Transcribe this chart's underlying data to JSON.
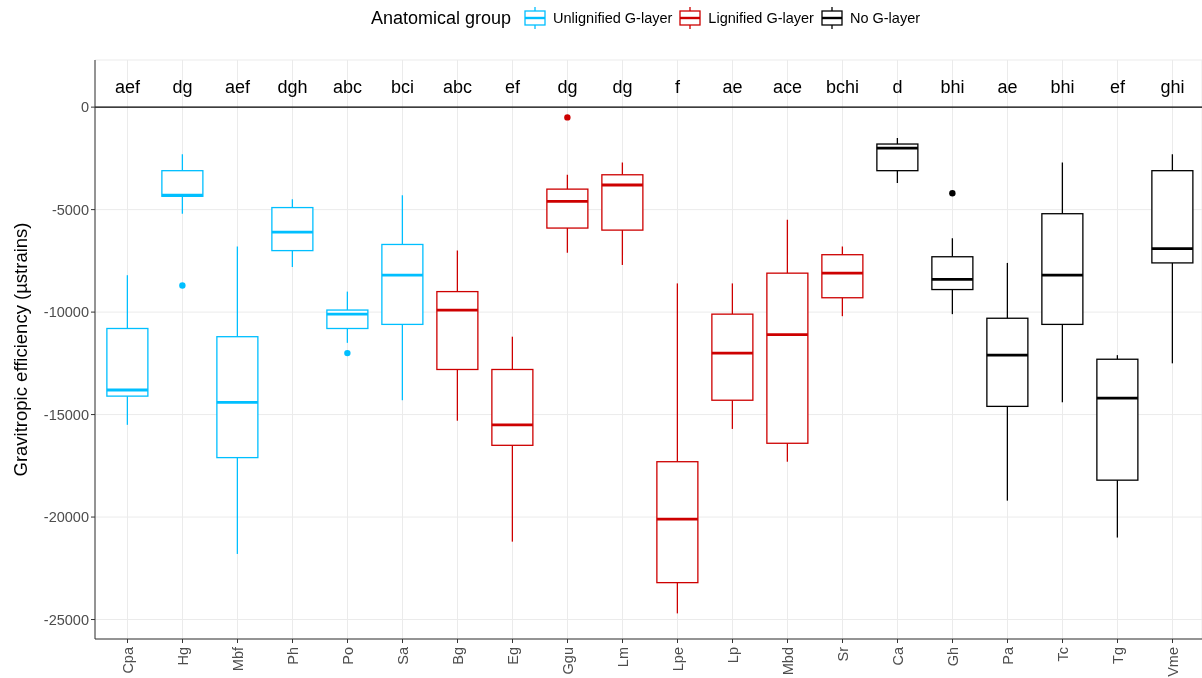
{
  "chart_data": {
    "type": "box",
    "ylabel": "Gravitropic efficiency (µstrains)",
    "legend_title": "Anatomical group",
    "legend": "top",
    "grid": true,
    "categories": [
      "Cpa",
      "Hg",
      "Mbf",
      "Ph",
      "Po",
      "Sa",
      "Bg",
      "Eg",
      "Ggu",
      "Lm",
      "Lpe",
      "Lp",
      "Mbd",
      "Sr",
      "Ca",
      "Gh",
      "Pa",
      "Tc",
      "Tg",
      "Vme"
    ],
    "ylim": [
      -25950,
      2300
    ],
    "yticks": [
      -25000,
      -20000,
      -15000,
      -10000,
      -5000,
      0
    ],
    "series": [
      {
        "name": "Unlignified G-layer",
        "color": "#00bfff",
        "boxes": [
          {
            "low": -15500,
            "q1": -14100,
            "median": -13800,
            "q3": -10800,
            "high": -8200
          },
          {
            "low": -5200,
            "q1": -4350,
            "median": -4300,
            "q3": -3100,
            "high": -2300,
            "outliers": [
              -8700
            ]
          },
          {
            "low": -21800,
            "q1": -17100,
            "median": -14400,
            "q3": -11200,
            "high": -6800
          },
          {
            "low": -7800,
            "q1": -7000,
            "median": -6100,
            "q3": -4900,
            "high": -4500
          },
          {
            "low": -11500,
            "q1": -10800,
            "median": -10100,
            "q3": -9900,
            "high": -9000,
            "outliers": [
              -12000
            ]
          },
          {
            "low": -14300,
            "q1": -10600,
            "median": -8200,
            "q3": -6700,
            "high": -4300
          },
          null,
          null,
          null,
          null,
          null,
          null,
          null,
          null,
          null,
          null,
          null,
          null,
          null,
          null
        ]
      },
      {
        "name": "Lignified G-layer",
        "color": "#cd0000",
        "boxes": [
          null,
          null,
          null,
          null,
          null,
          null,
          {
            "low": -15300,
            "q1": -12800,
            "median": -9900,
            "q3": -9000,
            "high": -7000
          },
          {
            "low": -21200,
            "q1": -16500,
            "median": -15500,
            "q3": -12800,
            "high": -11200
          },
          {
            "low": -7100,
            "q1": -5900,
            "median": -4600,
            "q3": -4000,
            "high": -3300,
            "outliers": [
              -500
            ]
          },
          {
            "low": -7700,
            "q1": -6000,
            "median": -3800,
            "q3": -3300,
            "high": -2700
          },
          {
            "low": -24700,
            "q1": -23200,
            "median": -20100,
            "q3": -17300,
            "high": -8600
          },
          {
            "low": -15700,
            "q1": -14300,
            "median": -12000,
            "q3": -10100,
            "high": -8600
          },
          {
            "low": -17300,
            "q1": -16400,
            "median": -11100,
            "q3": -8100,
            "high": -5500
          },
          {
            "low": -10200,
            "q1": -9300,
            "median": -8100,
            "q3": -7200,
            "high": -6800
          },
          null,
          null,
          null,
          null,
          null,
          null
        ]
      },
      {
        "name": "No G-layer",
        "color": "#000000",
        "boxes": [
          null,
          null,
          null,
          null,
          null,
          null,
          null,
          null,
          null,
          null,
          null,
          null,
          null,
          null,
          {
            "low": -3700,
            "q1": -3100,
            "median": -2000,
            "q3": -1800,
            "high": -1500
          },
          {
            "low": -10100,
            "q1": -8900,
            "median": -8400,
            "q3": -7300,
            "high": -6400,
            "outliers": [
              -4200
            ]
          },
          {
            "low": -19200,
            "q1": -14600,
            "median": -12100,
            "q3": -10300,
            "high": -7600
          },
          {
            "low": -14400,
            "q1": -10600,
            "median": -8200,
            "q3": -5200,
            "high": -2700
          },
          {
            "low": -21000,
            "q1": -18200,
            "median": -14200,
            "q3": -12300,
            "high": -12100
          },
          {
            "low": -12500,
            "q1": -7600,
            "median": -6900,
            "q3": -3100,
            "high": -2300
          }
        ]
      }
    ],
    "ref_lines": [
      {
        "axis": "y",
        "value": 0,
        "color": "#000000"
      }
    ],
    "annotations": [
      "aef",
      "dg",
      "aef",
      "dgh",
      "abc",
      "bci",
      "abc",
      "ef",
      "dg",
      "dg",
      "f",
      "ae",
      "ace",
      "bchi",
      "d",
      "bhi",
      "ae",
      "bhi",
      "ef",
      "ghi"
    ]
  }
}
